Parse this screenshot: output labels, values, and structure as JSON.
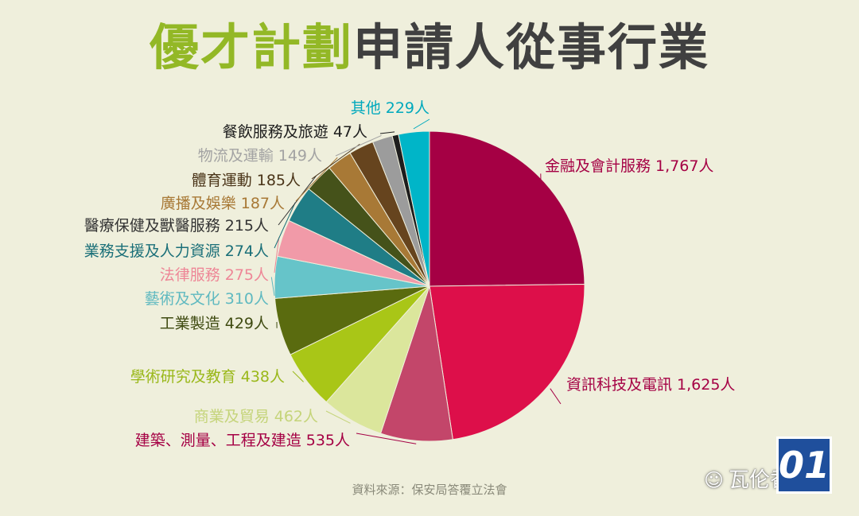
{
  "title": {
    "part1": "優才計劃",
    "part2": "申請人從事行業"
  },
  "source": "資料來源：保安局答覆立法會",
  "logo_text": "01",
  "watermark": {
    "icon": "wechat-icon",
    "text": "瓦伦香港"
  },
  "chart_data": {
    "type": "pie",
    "title": "優才計劃申請人從事行業",
    "unit": "人",
    "slices": [
      {
        "name": "金融及會計服務",
        "value": 1767,
        "label": "金融及會計服務 1,767人",
        "color": "#a50044",
        "text_color": "#a50044"
      },
      {
        "name": "資訊科技及電訊",
        "value": 1625,
        "label": "資訊科技及電訊 1,625人",
        "color": "#dd0f4a",
        "text_color": "#a50044"
      },
      {
        "name": "建築、測量、工程及建造",
        "value": 535,
        "label": "建築、測量、工程及建造 535人",
        "color": "#c3466a",
        "text_color": "#a50044"
      },
      {
        "name": "商業及貿易",
        "value": 462,
        "label": "商業及貿易 462人",
        "color": "#dbe69c",
        "text_color": "#c5d47a"
      },
      {
        "name": "學術研究及教育",
        "value": 438,
        "label": "學術研究及教育 438人",
        "color": "#a9c617",
        "text_color": "#9ab81a"
      },
      {
        "name": "工業製造",
        "value": 429,
        "label": "工業製造 429人",
        "color": "#5a6b0f",
        "text_color": "#3e4a10"
      },
      {
        "name": "藝術及文化",
        "value": 310,
        "label": "藝術及文化 310人",
        "color": "#66c4c9",
        "text_color": "#5fb9c0"
      },
      {
        "name": "法律服務",
        "value": 275,
        "label": "法律服務 275人",
        "color": "#f19aa8",
        "text_color": "#ee8797"
      },
      {
        "name": "業務支援及人力資源",
        "value": 274,
        "label": "業務支援及人力資源 274人",
        "color": "#1f7d86",
        "text_color": "#1a6f78"
      },
      {
        "name": "醫療保健及獸醫服務",
        "value": 215,
        "label": "醫療保健及獸醫服務 215人",
        "color": "#45521a",
        "text_color": "#333333"
      },
      {
        "name": "廣播及娛樂",
        "value": 187,
        "label": "廣播及娛樂 187人",
        "color": "#a87936",
        "text_color": "#a87936"
      },
      {
        "name": "體育運動",
        "value": 185,
        "label": "體育運動 185人",
        "color": "#66441e",
        "text_color": "#4a3418"
      },
      {
        "name": "物流及運輸",
        "value": 149,
        "label": "物流及運輸 149人",
        "color": "#9c9c9c",
        "text_color": "#a3a3a3"
      },
      {
        "name": "餐飲服務及旅遊",
        "value": 47,
        "label": "餐飲服務及旅遊 47人",
        "color": "#1d1d1d",
        "text_color": "#1d1d1d"
      },
      {
        "name": "其他",
        "value": 229,
        "label": "其他 229人",
        "color": "#00b5c8",
        "text_color": "#00a9bd"
      }
    ]
  }
}
